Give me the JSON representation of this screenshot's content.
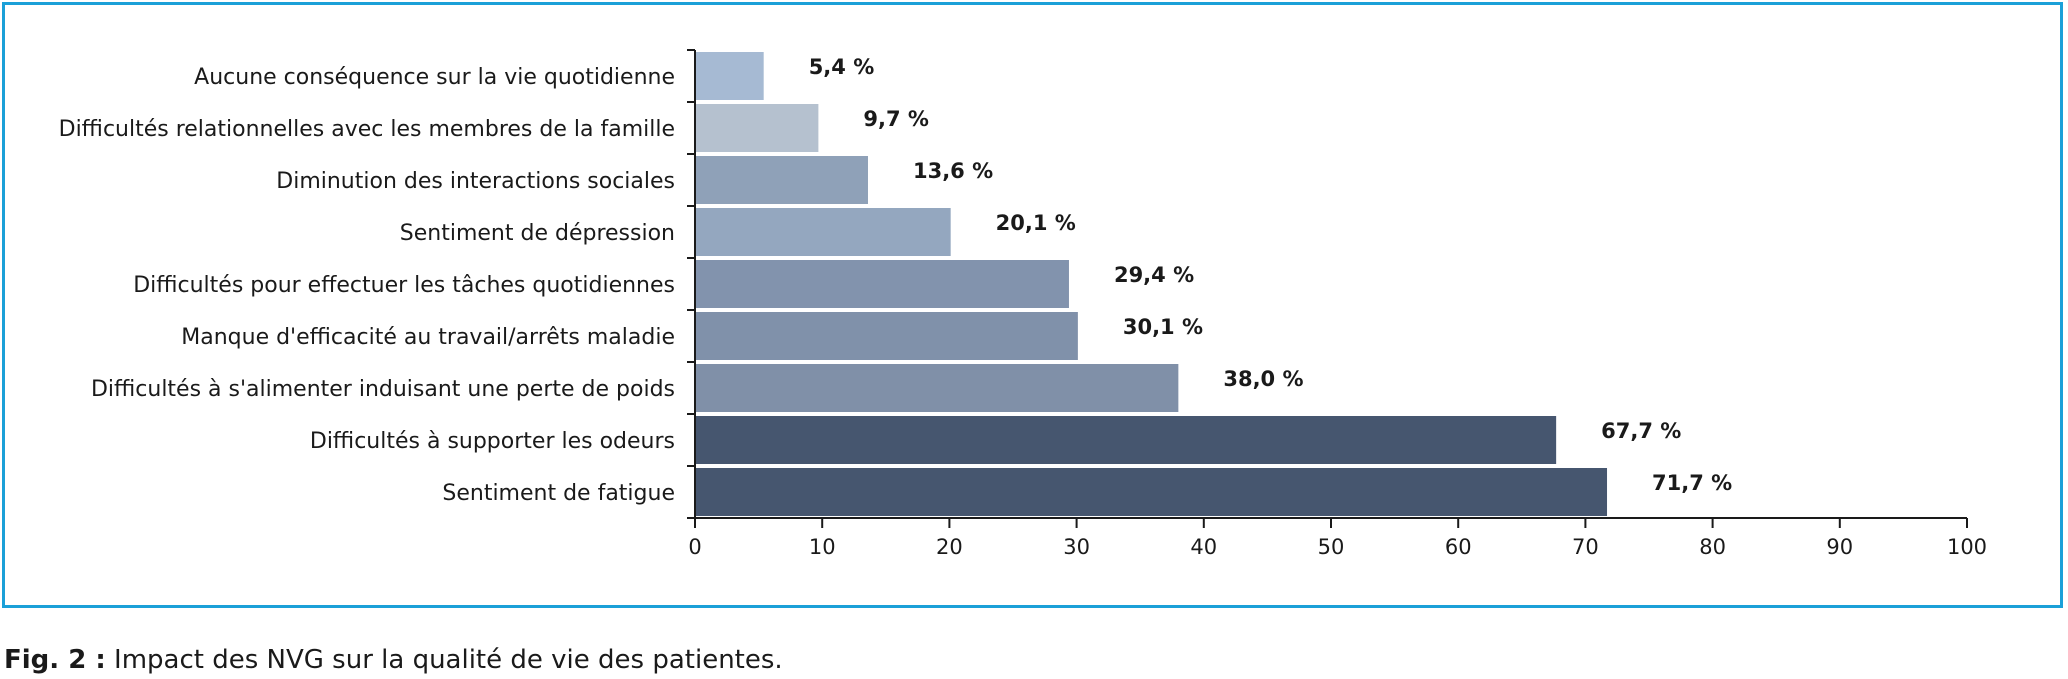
{
  "chart_data": {
    "type": "bar",
    "orientation": "horizontal",
    "categories": [
      "Aucune conséquence sur la vie quotidienne",
      "Difficultés relationnelles avec les membres de la famille",
      "Diminution des interactions sociales",
      "Sentiment de dépression",
      "Difficultés pour effectuer les tâches quotidiennes",
      "Manque d'efficacité au travail/arrêts maladie",
      "Difficultés à s'alimenter induisant une perte de poids",
      "Difficultés à supporter les odeurs",
      "Sentiment de fatigue"
    ],
    "values": [
      5.4,
      9.7,
      13.6,
      20.1,
      29.4,
      30.1,
      38.0,
      67.7,
      71.7
    ],
    "value_labels": [
      "5,4 %",
      "9,7 %",
      "13,6 %",
      "20,1 %",
      "29,4 %",
      "30,1 %",
      "38,0 %",
      "67,7 %",
      "71,7 %"
    ],
    "bar_colors": [
      "#a6bad3",
      "#b5c1cf",
      "#8fa1b8",
      "#94a7bf",
      "#8293ad",
      "#8091aa",
      "#8090a8",
      "#46566f",
      "#46566f"
    ],
    "xlim": [
      0,
      100
    ],
    "xticks": [
      0,
      10,
      20,
      30,
      40,
      50,
      60,
      70,
      80,
      90,
      100
    ],
    "grid": false
  },
  "caption": {
    "label": "Fig. 2 :",
    "text": " Impact des NVG sur la qualité de vie des patientes."
  },
  "colors": {
    "border": "#1ba0d8",
    "axis": "#1a1a1a",
    "text": "#1a1a1a"
  }
}
